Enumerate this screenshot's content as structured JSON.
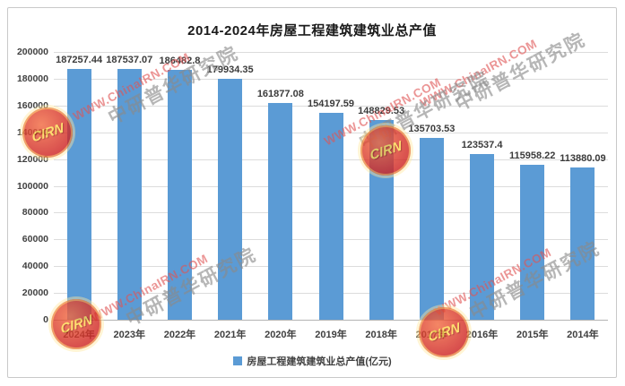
{
  "chart_data": {
    "type": "bar",
    "title": "2014-2024年房屋工程建筑建筑业总产值",
    "categories": [
      "2024年",
      "2023年",
      "2022年",
      "2021年",
      "2020年",
      "2019年",
      "2018年",
      "2017年",
      "2016年",
      "2015年",
      "2014年"
    ],
    "series": [
      {
        "name": "房屋工程建筑建筑业总产值(亿元)",
        "values": [
          187257.44,
          187537.07,
          186482.8,
          179934.35,
          161877.08,
          154197.59,
          148829.53,
          135703.53,
          123537.4,
          115958.22,
          113880.09
        ]
      }
    ],
    "value_labels": [
      "187257.44",
      "187537.07",
      "186482.8",
      "179934.35",
      "161877.08",
      "154197.59",
      "148829.53",
      "135703.53",
      "123537.4",
      "115958.22",
      "113880.09"
    ],
    "xlabel": "",
    "ylabel": "",
    "ylim": [
      0,
      200000
    ],
    "ytick_step": 20000,
    "yticks": [
      "200000",
      "180000",
      "160000",
      "140000",
      "120000",
      "100000",
      "80000",
      "60000",
      "40000",
      "20000",
      "0"
    ],
    "grid": true,
    "legend_position": "bottom",
    "bar_color": "#5B9BD5"
  },
  "legend": {
    "label": "房屋工程建筑建筑业总产值(亿元)",
    "marker_color": "#5B9BD5"
  },
  "watermark": {
    "url_text": "WWW.ChinaIRN.COM",
    "cn_text": "中研普华研究院",
    "logo_text": "CIRN"
  }
}
